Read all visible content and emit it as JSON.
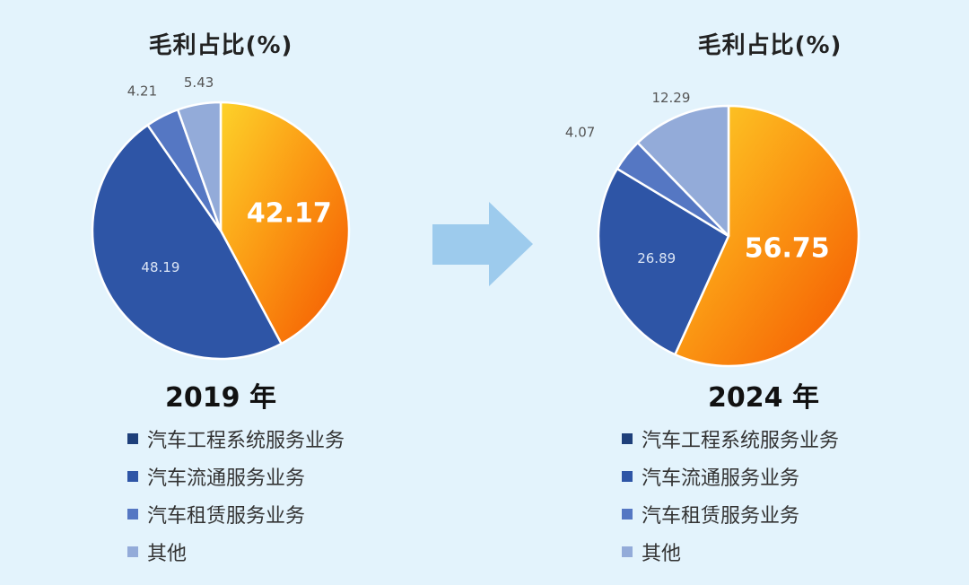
{
  "chart_data": [
    {
      "type": "pie",
      "title": "毛利占比(%)",
      "year": "2019 年",
      "categories": [
        "汽车工程系统服务业务",
        "汽车流通服务业务",
        "汽车租赁服务业务",
        "其他"
      ],
      "values": [
        42.17,
        48.19,
        4.21,
        5.43
      ],
      "labels": [
        "42.17",
        "48.19",
        "4.21",
        "5.43"
      ],
      "colors": [
        "#fb8f0f",
        "#2e55a6",
        "#5577c3",
        "#93abd9"
      ]
    },
    {
      "type": "pie",
      "title": "毛利占比(%)",
      "year": "2024 年",
      "categories": [
        "汽车工程系统服务业务",
        "汽车流通服务业务",
        "汽车租赁服务业务",
        "其他"
      ],
      "values": [
        56.75,
        26.89,
        4.07,
        12.29
      ],
      "labels": [
        "56.75",
        "26.89",
        "4.07",
        "12.29"
      ],
      "colors": [
        "#fb8f0f",
        "#2e55a6",
        "#5577c3",
        "#93abd9"
      ]
    }
  ],
  "legend": {
    "items": [
      "汽车工程系统服务业务",
      "汽车流通服务业务",
      "汽车租赁服务业务",
      "其他"
    ],
    "colors": [
      "#1e3f7a",
      "#2e55a6",
      "#5577c3",
      "#93abd9"
    ]
  },
  "arrow": {
    "icon": "right-arrow-icon",
    "color": "#9dcbed"
  }
}
